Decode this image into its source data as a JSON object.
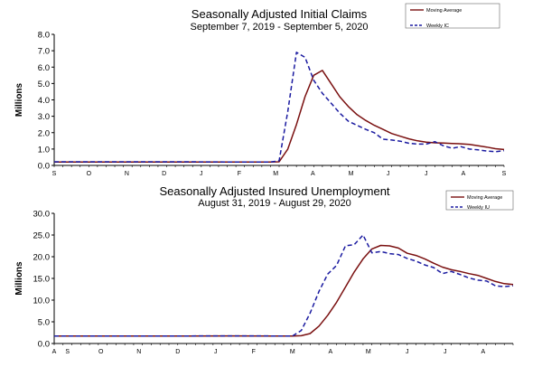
{
  "chart_data": [
    {
      "type": "line",
      "title": "Seasonally Adjusted Initial Claims",
      "subtitle": "September 7, 2019 - September 5, 2020",
      "ylabel": "Millions",
      "ylim": [
        0,
        8
      ],
      "yticks": [
        "0.0",
        "1.0",
        "2.0",
        "3.0",
        "4.0",
        "5.0",
        "6.0",
        "7.0",
        "8.0"
      ],
      "xlim": [
        0,
        52
      ],
      "xticks": [
        {
          "label": "S",
          "x": 0
        },
        {
          "label": "O",
          "x": 4
        },
        {
          "label": "N",
          "x": 8.4
        },
        {
          "label": "D",
          "x": 12.7
        },
        {
          "label": "J",
          "x": 17
        },
        {
          "label": "F",
          "x": 21.4
        },
        {
          "label": "M",
          "x": 25.6
        },
        {
          "label": "A",
          "x": 29.9
        },
        {
          "label": "M",
          "x": 34.3
        },
        {
          "label": "J",
          "x": 38.6
        },
        {
          "label": "J",
          "x": 43
        },
        {
          "label": "A",
          "x": 47.3
        },
        {
          "label": "S",
          "x": 52
        }
      ],
      "grid": false,
      "legend": "top-right",
      "series": [
        {
          "name": "Moving Average",
          "color": "#7a1010",
          "style": "solid",
          "x": [
            0,
            5,
            10,
            15,
            20,
            25,
            26,
            27,
            28,
            29,
            30,
            31,
            32,
            33,
            34,
            35,
            36,
            37,
            38,
            39,
            40,
            41,
            42,
            43,
            44,
            45,
            46,
            47,
            48,
            49,
            50,
            51,
            52
          ],
          "values": [
            0.21,
            0.21,
            0.21,
            0.21,
            0.21,
            0.21,
            0.22,
            1.0,
            2.5,
            4.2,
            5.5,
            5.8,
            5.0,
            4.2,
            3.6,
            3.1,
            2.75,
            2.45,
            2.2,
            1.95,
            1.78,
            1.62,
            1.5,
            1.42,
            1.38,
            1.36,
            1.34,
            1.32,
            1.28,
            1.2,
            1.12,
            1.02,
            0.97
          ]
        },
        {
          "name": "Weekly IC",
          "color": "#1a1aa0",
          "style": "dashed",
          "x": [
            0,
            5,
            10,
            15,
            20,
            25,
            26,
            27,
            28,
            29,
            30,
            31,
            32,
            33,
            34,
            35,
            36,
            37,
            38,
            39,
            40,
            41,
            42,
            43,
            44,
            45,
            46,
            47,
            48,
            49,
            50,
            51,
            52
          ],
          "values": [
            0.22,
            0.22,
            0.22,
            0.22,
            0.21,
            0.21,
            0.28,
            3.3,
            6.9,
            6.6,
            5.2,
            4.4,
            3.8,
            3.2,
            2.7,
            2.45,
            2.2,
            2.0,
            1.6,
            1.55,
            1.48,
            1.35,
            1.3,
            1.3,
            1.45,
            1.2,
            1.05,
            1.15,
            1.0,
            0.95,
            0.88,
            0.84,
            0.9
          ]
        }
      ]
    },
    {
      "type": "line",
      "title": "Seasonally Adjusted Insured Unemployment",
      "subtitle": "August 31, 2019 - August 29, 2020",
      "ylabel": "Millions",
      "ylim": [
        0,
        30
      ],
      "yticks": [
        "0.0",
        "5.0",
        "10.0",
        "15.0",
        "20.0",
        "25.0",
        "30.0"
      ],
      "xlim": [
        0,
        52
      ],
      "xticks": [
        {
          "label": "A",
          "x": 0
        },
        {
          "label": "S",
          "x": 1.5
        },
        {
          "label": "O",
          "x": 5.3
        },
        {
          "label": "N",
          "x": 9.6
        },
        {
          "label": "D",
          "x": 14
        },
        {
          "label": "J",
          "x": 18.3
        },
        {
          "label": "F",
          "x": 22.6
        },
        {
          "label": "M",
          "x": 27
        },
        {
          "label": "A",
          "x": 31.3
        },
        {
          "label": "M",
          "x": 35.6
        },
        {
          "label": "J",
          "x": 40
        },
        {
          "label": "J",
          "x": 44.3
        },
        {
          "label": "A",
          "x": 48.6
        }
      ],
      "grid": false,
      "legend": "top-right",
      "series": [
        {
          "name": "Moving Average",
          "color": "#7a1010",
          "style": "solid",
          "x": [
            0,
            5,
            10,
            15,
            20,
            25,
            27,
            28,
            29,
            30,
            31,
            32,
            33,
            34,
            35,
            36,
            37,
            38,
            39,
            40,
            41,
            42,
            43,
            44,
            45,
            46,
            47,
            48,
            49,
            50,
            51,
            52
          ],
          "values": [
            1.7,
            1.7,
            1.7,
            1.72,
            1.75,
            1.72,
            1.72,
            1.8,
            2.3,
            4.0,
            6.5,
            9.5,
            13.0,
            16.5,
            19.5,
            21.8,
            22.6,
            22.5,
            22.0,
            20.8,
            20.3,
            19.5,
            18.5,
            17.6,
            17.0,
            16.6,
            16.1,
            15.7,
            15.0,
            14.3,
            13.8,
            13.6
          ]
        },
        {
          "name": "Weekly IU",
          "color": "#1a1aa0",
          "style": "dashed",
          "x": [
            0,
            5,
            10,
            15,
            20,
            25,
            27,
            28,
            29,
            30,
            31,
            32,
            33,
            34,
            35,
            36,
            37,
            38,
            39,
            40,
            41,
            42,
            43,
            44,
            45,
            46,
            47,
            48,
            49,
            50,
            51,
            52
          ],
          "values": [
            1.7,
            1.7,
            1.7,
            1.72,
            1.75,
            1.72,
            1.72,
            3.0,
            7.0,
            12.0,
            16.0,
            18.0,
            22.5,
            22.8,
            25.0,
            20.9,
            21.2,
            20.7,
            20.5,
            19.6,
            19.0,
            18.1,
            17.5,
            16.1,
            16.6,
            15.9,
            15.1,
            14.6,
            14.4,
            13.3,
            13.1,
            13.3
          ]
        }
      ]
    }
  ]
}
